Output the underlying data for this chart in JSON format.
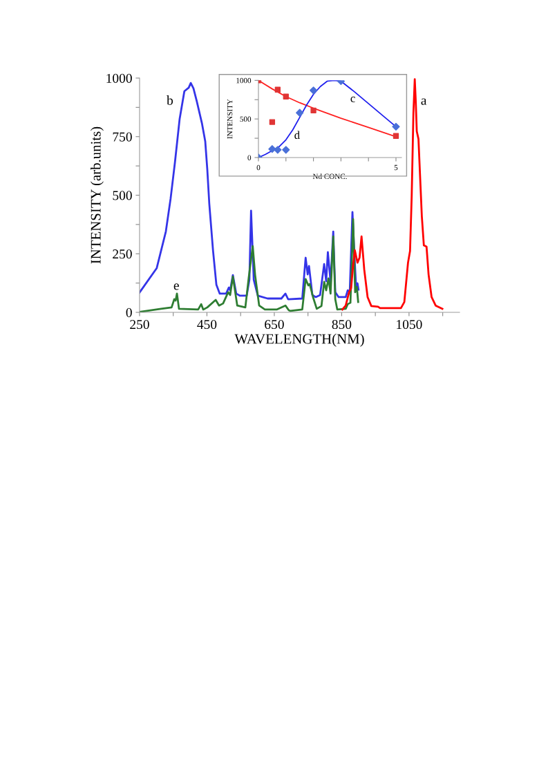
{
  "chart_data": [
    {
      "type": "line",
      "xlabel": "WAVELENGTH(NM)",
      "ylabel": "INTENSITY (arb.units)",
      "xlim": [
        250,
        1200
      ],
      "ylim": [
        0,
        1000
      ],
      "xticks": [
        250,
        {
          "value": 350,
          "label": null
        },
        450,
        {
          "value": 550,
          "label": null
        },
        650,
        {
          "value": 750,
          "label": null
        },
        850,
        {
          "value": 950,
          "label": null
        },
        1050,
        {
          "value": 1150,
          "label": null
        }
      ],
      "yticks": [
        0,
        {
          "value": 125,
          "label": null
        },
        250,
        {
          "value": 375,
          "label": null
        },
        500,
        {
          "value": 625,
          "label": null
        },
        750,
        {
          "value": 875,
          "label": null
        },
        1000
      ],
      "grid": false,
      "legend": false,
      "marker": "none",
      "line_style": "solid",
      "series": [
        {
          "color": "#3434e8",
          "x": [
            250,
            301,
            328,
            342,
            355,
            369,
            383,
            396,
            402,
            410,
            420,
            435,
            445,
            451,
            457,
            468,
            478,
            488,
            507,
            515,
            519,
            527,
            537,
            548,
            568,
            576,
            581,
            589,
            601,
            630,
            671,
            683,
            691,
            733,
            743,
            749,
            753,
            763,
            773,
            786,
            798,
            804,
            809,
            817,
            825,
            831,
            841,
            862,
            868,
            874,
            882,
            889,
            893,
            897,
            900
          ],
          "values": [
            85,
            189,
            345,
            484,
            640,
            826,
            944,
            959,
            979,
            956,
            900,
            808,
            729,
            611,
            463,
            265,
            118,
            80,
            80,
            106,
            94,
            159,
            80,
            71,
            71,
            139,
            434,
            139,
            71,
            59,
            59,
            80,
            56,
            59,
            233,
            162,
            198,
            74,
            65,
            74,
            206,
            133,
            257,
            130,
            345,
            86,
            65,
            65,
            94,
            86,
            428,
            212,
            103,
            124,
            97
          ]
        },
        {
          "color": "#2e7d32",
          "x": [
            250,
            314,
            345,
            353,
            357,
            361,
            367,
            424,
            433,
            439,
            451,
            476,
            486,
            498,
            513,
            519,
            527,
            540,
            564,
            574,
            586,
            593,
            605,
            622,
            657,
            683,
            693,
            698,
            733,
            743,
            751,
            755,
            765,
            776,
            790,
            798,
            804,
            811,
            817,
            825,
            831,
            837,
            862,
            868,
            876,
            884,
            890,
            895,
            899
          ],
          "values": [
            2,
            15,
            21,
            56,
            50,
            80,
            15,
            12,
            35,
            12,
            21,
            53,
            29,
            38,
            86,
            74,
            153,
            29,
            21,
            147,
            283,
            159,
            29,
            12,
            12,
            29,
            9,
            6,
            12,
            142,
            115,
            121,
            65,
            15,
            27,
            130,
            94,
            145,
            80,
            324,
            56,
            12,
            15,
            35,
            41,
            398,
            86,
            109,
            44
          ]
        },
        {
          "color": "#ff0000",
          "x": [
            852,
            862,
            872,
            878,
            884,
            889,
            897,
            903,
            909,
            917,
            927,
            938,
            958,
            964,
            1026,
            1036,
            1047,
            1053,
            1058,
            1063,
            1067,
            1070,
            1073,
            1078,
            1088,
            1094,
            1102,
            1108,
            1117,
            1129,
            1149
          ],
          "values": [
            12,
            29,
            86,
            103,
            200,
            265,
            212,
            233,
            324,
            183,
            65,
            27,
            24,
            18,
            18,
            44,
            212,
            262,
            500,
            850,
            995,
            900,
            773,
            740,
            410,
            286,
            280,
            162,
            65,
            29,
            15
          ]
        }
      ],
      "annotations": [
        "a",
        "b",
        "e"
      ]
    },
    {
      "type": "scatter",
      "xlabel": "Nd CONC.",
      "ylabel": "INTENSITY",
      "xlim": [
        0,
        5.2
      ],
      "ylim": [
        0,
        1000
      ],
      "xticks": [
        0,
        {
          "value": 1,
          "label": null
        },
        {
          "value": 2,
          "label": null
        },
        {
          "value": 3,
          "label": null
        },
        {
          "value": 4,
          "label": null
        },
        5
      ],
      "yticks": [
        0,
        {
          "value": 250,
          "label": null
        },
        500,
        {
          "value": 750,
          "label": null
        },
        1000
      ],
      "grid": false,
      "legend": false,
      "series": [
        {
          "type": "line",
          "color": "#ff2020",
          "marker": "none",
          "x": [
            0,
            0.5,
            1,
            1.5,
            2,
            3,
            4,
            5
          ],
          "values": [
            1000,
            890,
            790,
            710,
            640,
            510,
            390,
            270
          ]
        },
        {
          "type": "line",
          "color": "#2020ee",
          "marker": "none",
          "x": [
            0,
            0.25,
            0.5,
            0.75,
            1,
            1.25,
            1.5,
            1.75,
            2,
            2.25,
            2.5,
            2.75,
            3,
            3.5,
            4,
            4.5,
            5
          ],
          "values": [
            0,
            40,
            90,
            140,
            230,
            360,
            520,
            680,
            820,
            920,
            990,
            1000,
            990,
            850,
            700,
            550,
            400
          ]
        },
        {
          "color": "#e03535",
          "marker": "square",
          "x": [
            0,
            0.5,
            0.7,
            1,
            2,
            5
          ],
          "values": [
            1000,
            460,
            880,
            790,
            610,
            280
          ]
        },
        {
          "color": "#4a70d8",
          "marker": "diamond",
          "x": [
            0,
            0.5,
            0.7,
            1,
            1.5,
            2,
            3,
            5
          ],
          "values": [
            0,
            110,
            100,
            100,
            580,
            870,
            990,
            400
          ]
        }
      ],
      "annotations": [
        "c",
        "d"
      ]
    }
  ]
}
